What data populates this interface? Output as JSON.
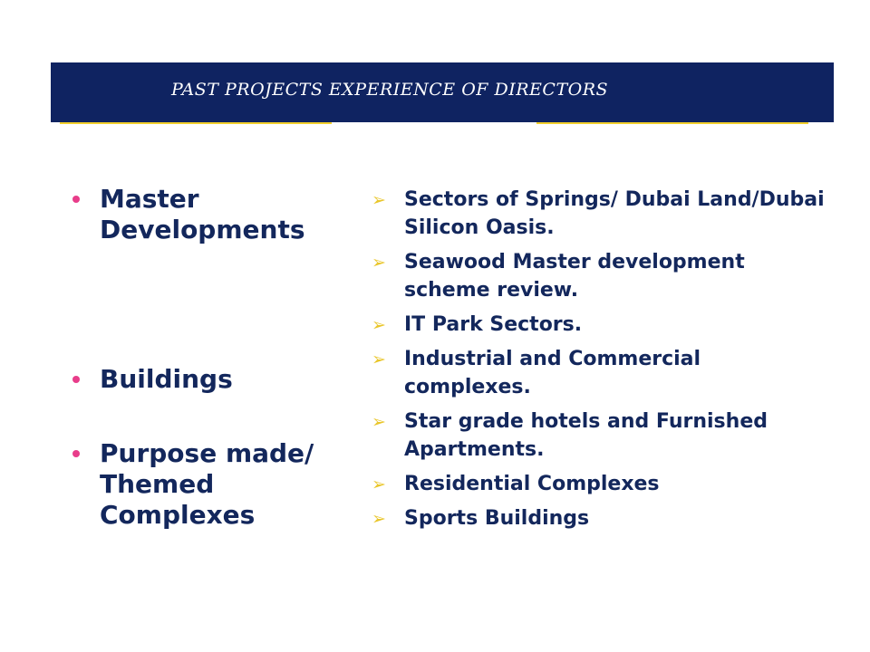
{
  "header": {
    "title": "PAST PROJECTS EXPERIENCE OF DIRECTORS"
  },
  "categories": [
    "Master Developments",
    "Buildings",
    "Purpose made/ Themed Complexes"
  ],
  "projects": [
    "Sectors of Springs/ Dubai Land/Dubai Silicon Oasis.",
    "Seawood Master development scheme review.",
    "IT Park Sectors.",
    "Industrial and Commercial complexes.",
    "Star grade hotels and Furnished Apartments.",
    "Residential Complexes",
    "Sports Buildings"
  ],
  "icons": {
    "category_bullet": "pink-dot-bullet-icon",
    "project_bullet": "yellow-arrow-bullet-icon"
  },
  "colors": {
    "banner": "#0f2361",
    "accent": "#f2cf2c",
    "text": "#13275c",
    "dot_bullet": "#e83d8a",
    "arrow_bullet": "#e9c62b"
  }
}
